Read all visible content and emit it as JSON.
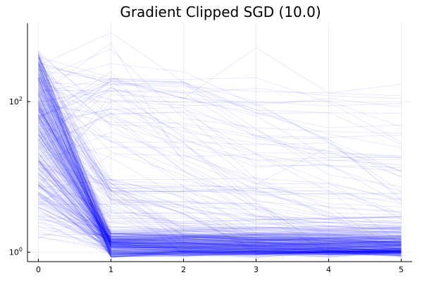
{
  "chart_data": {
    "type": "line",
    "title": "Gradient Clipped SGD (10.0)",
    "xlabel": "",
    "ylabel": "",
    "yscale": "log",
    "x": [
      0,
      1,
      2,
      3,
      4,
      5
    ],
    "xlim": [
      -0.15,
      5.15
    ],
    "ylim": [
      0.75,
      1100
    ],
    "x_ticks": [
      0,
      1,
      2,
      3,
      4,
      5
    ],
    "y_ticks": [
      1,
      100
    ],
    "grid": true,
    "legend": "none",
    "line_color": "#0000ff",
    "line_opacity": 0.09,
    "series_count": 400,
    "series_summary": {
      "initial_value_range": [
        1.4,
        480
      ],
      "typical_value_after_epoch_1": 1.0,
      "max_value": 980
    },
    "highlight_series": [
      [
        470,
        60,
        12,
        3,
        2.2,
        2.0
      ],
      [
        390,
        210,
        110,
        520,
        130,
        170
      ],
      [
        300,
        830,
        180,
        100,
        88,
        95
      ],
      [
        260,
        190,
        130,
        150,
        120,
        110
      ],
      [
        200,
        500,
        60,
        45,
        40,
        38
      ],
      [
        180,
        320,
        250,
        90,
        110,
        85
      ],
      [
        150,
        95,
        40,
        28,
        22,
        18
      ],
      [
        120,
        600,
        15,
        5,
        3,
        2.5
      ],
      [
        100,
        140,
        35,
        20,
        14,
        12
      ],
      [
        80,
        30,
        9,
        6,
        4,
        3.5
      ],
      [
        60,
        250,
        20,
        8,
        25,
        12
      ],
      [
        40,
        18,
        5,
        3,
        2.5,
        2.2
      ],
      [
        25,
        70,
        12,
        4,
        3,
        2.8
      ],
      [
        15,
        9,
        4,
        2.5,
        2,
        1.8
      ],
      [
        8,
        4,
        2.2,
        1.7,
        1.5,
        1.4
      ],
      [
        3,
        2.5,
        1.8,
        1.5,
        1.4,
        1.3
      ]
    ]
  }
}
